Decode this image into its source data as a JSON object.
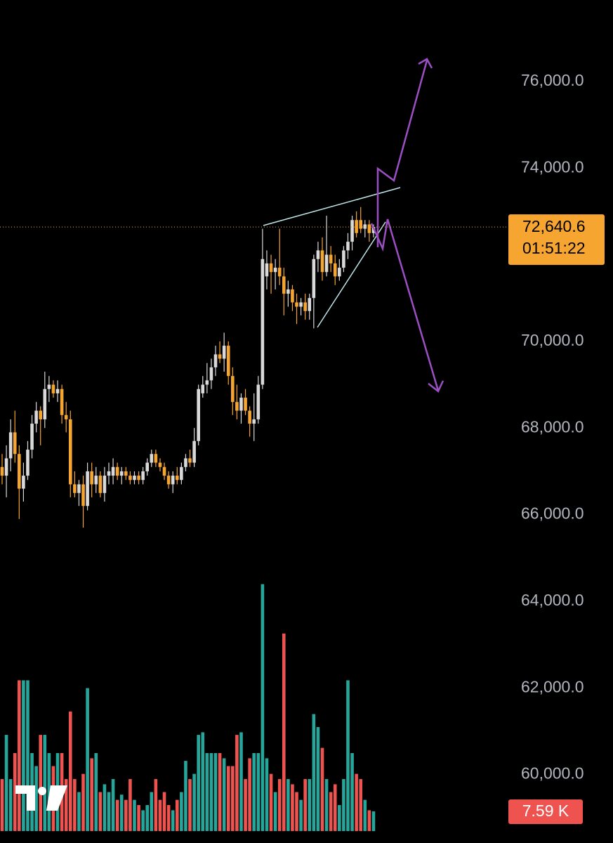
{
  "chart_data": {
    "type": "candlestick",
    "ylim": [
      58420,
      77880
    ],
    "yticks": [
      {
        "value": 60000,
        "label": "60,000.0"
      },
      {
        "value": 62000,
        "label": "62,000.0"
      },
      {
        "value": 64000,
        "label": "64,000.0"
      },
      {
        "value": 66000,
        "label": "66,000.0"
      },
      {
        "value": 68000,
        "label": "68,000.0"
      },
      {
        "value": 70000,
        "label": "70,000.0"
      },
      {
        "value": 74000,
        "label": "74,000.0"
      },
      {
        "value": 76000,
        "label": "76,000.0"
      }
    ],
    "current_price": {
      "value": 72640.6,
      "label": "72,640.6"
    },
    "countdown": "01:51:22",
    "up_color": "#d9d9d9",
    "down_color": "#f7a531",
    "volume_up_color": "#26a69a",
    "volume_down_color": "#ef5350",
    "volume_lim": [
      0,
      100
    ],
    "volume_label": {
      "value": 7.59,
      "label": "7.59 K"
    },
    "candles": [
      [
        67100,
        67400,
        66700,
        66900
      ],
      [
        66900,
        67600,
        66400,
        67300
      ],
      [
        67300,
        68200,
        67000,
        67900
      ],
      [
        67900,
        68400,
        67200,
        67400
      ],
      [
        67400,
        67600,
        65900,
        66600
      ],
      [
        66600,
        67200,
        66300,
        66900
      ],
      [
        66900,
        67700,
        66800,
        67500
      ],
      [
        67500,
        68300,
        67300,
        68100
      ],
      [
        68100,
        68600,
        67900,
        68400
      ],
      [
        68400,
        68500,
        67600,
        68200
      ],
      [
        68200,
        69300,
        68000,
        68900
      ],
      [
        68900,
        69200,
        68600,
        69000
      ],
      [
        69000,
        69100,
        68700,
        68800
      ],
      [
        68800,
        69100,
        68600,
        68900
      ],
      [
        68900,
        69000,
        68100,
        68300
      ],
      [
        68300,
        68600,
        67900,
        68200
      ],
      [
        68200,
        68400,
        66400,
        66700
      ],
      [
        66700,
        67000,
        66400,
        66500
      ],
      [
        66500,
        66800,
        66200,
        66700
      ],
      [
        66700,
        66900,
        65700,
        66200
      ],
      [
        66200,
        67200,
        66100,
        67000
      ],
      [
        67000,
        67200,
        66400,
        66700
      ],
      [
        66700,
        67100,
        66500,
        66900
      ],
      [
        66900,
        67000,
        66400,
        66500
      ],
      [
        66500,
        67100,
        66300,
        66900
      ],
      [
        66900,
        67200,
        66700,
        67000
      ],
      [
        66900,
        67300,
        66700,
        67100
      ],
      [
        67100,
        67200,
        66800,
        66900
      ],
      [
        66900,
        67100,
        66700,
        67000
      ],
      [
        67000,
        67100,
        66800,
        66900
      ],
      [
        66900,
        67000,
        66700,
        66800
      ],
      [
        66800,
        67000,
        66700,
        66900
      ],
      [
        66900,
        67000,
        66700,
        66800
      ],
      [
        66800,
        67100,
        66700,
        67000
      ],
      [
        67000,
        67300,
        66900,
        67200
      ],
      [
        67200,
        67500,
        67100,
        67400
      ],
      [
        67400,
        67500,
        67100,
        67200
      ],
      [
        67200,
        67300,
        67000,
        67100
      ],
      [
        67100,
        67200,
        66800,
        66900
      ],
      [
        66900,
        67000,
        66600,
        66700
      ],
      [
        66700,
        67000,
        66500,
        66900
      ],
      [
        66900,
        67100,
        66700,
        66800
      ],
      [
        66800,
        67200,
        66700,
        67100
      ],
      [
        67100,
        67400,
        67000,
        67300
      ],
      [
        67300,
        67500,
        67100,
        67200
      ],
      [
        67200,
        68000,
        67100,
        67700
      ],
      [
        67700,
        69000,
        67600,
        68900
      ],
      [
        68800,
        69200,
        68700,
        69000
      ],
      [
        69000,
        69500,
        68800,
        69100
      ],
      [
        69100,
        69600,
        68900,
        69400
      ],
      [
        69400,
        69900,
        69200,
        69700
      ],
      [
        69700,
        70000,
        69500,
        69600
      ],
      [
        69600,
        70200,
        69300,
        69900
      ],
      [
        69900,
        70000,
        69000,
        69200
      ],
      [
        69200,
        69400,
        68300,
        68600
      ],
      [
        68600,
        69000,
        68200,
        68400
      ],
      [
        68400,
        68800,
        68100,
        68700
      ],
      [
        68700,
        68900,
        68300,
        68400
      ],
      [
        68400,
        68500,
        67800,
        68100
      ],
      [
        68100,
        68800,
        67700,
        68200
      ],
      [
        68200,
        69200,
        68100,
        69000
      ],
      [
        69000,
        72600,
        68900,
        71900
      ],
      [
        71500,
        72100,
        71200,
        71800
      ],
      [
        71800,
        72000,
        71100,
        71600
      ],
      [
        71600,
        71900,
        71200,
        71700
      ],
      [
        71700,
        72600,
        71300,
        71500
      ],
      [
        71500,
        71700,
        70600,
        71100
      ],
      [
        71100,
        71400,
        70800,
        71200
      ],
      [
        71200,
        71300,
        70700,
        70900
      ],
      [
        70900,
        71100,
        70400,
        70800
      ],
      [
        70800,
        71000,
        70600,
        70900
      ],
      [
        70900,
        71100,
        70500,
        70700
      ],
      [
        70700,
        71100,
        70500,
        71000
      ],
      [
        71000,
        72000,
        70300,
        71900
      ],
      [
        71900,
        72300,
        71600,
        72100
      ],
      [
        72100,
        72400,
        71400,
        71600
      ],
      [
        71600,
        72900,
        71500,
        72000
      ],
      [
        72000,
        72200,
        71600,
        71800
      ],
      [
        71800,
        72000,
        71300,
        71500
      ],
      [
        71500,
        71900,
        71400,
        71700
      ],
      [
        71700,
        72200,
        71600,
        72100
      ],
      [
        72100,
        72500,
        71900,
        72300
      ],
      [
        72300,
        72900,
        72100,
        72800
      ],
      [
        72800,
        73000,
        72400,
        72500
      ],
      [
        72800,
        73100,
        72500,
        72600
      ],
      [
        72600,
        72800,
        72400,
        72700
      ],
      [
        72700,
        72800,
        72300,
        72500
      ],
      [
        72500,
        72700,
        72400,
        72640.6
      ]
    ],
    "volumes": [
      20,
      37,
      20,
      30,
      58,
      58,
      58,
      30,
      25,
      37,
      37,
      30,
      25,
      30,
      30,
      20,
      46,
      20,
      15,
      22,
      55,
      28,
      30,
      15,
      18,
      15,
      20,
      12,
      14,
      12,
      20,
      12,
      10,
      8,
      10,
      15,
      20,
      12,
      15,
      10,
      8,
      12,
      15,
      27,
      20,
      22,
      37,
      38,
      30,
      30,
      30,
      30,
      28,
      25,
      25,
      37,
      38,
      20,
      28,
      30,
      30,
      95,
      28,
      22,
      15,
      20,
      76,
      20,
      18,
      15,
      12,
      20,
      20,
      45,
      40,
      32,
      20,
      15,
      18,
      10,
      20,
      58,
      30,
      22,
      20,
      12,
      8,
      7.59
    ]
  }
}
